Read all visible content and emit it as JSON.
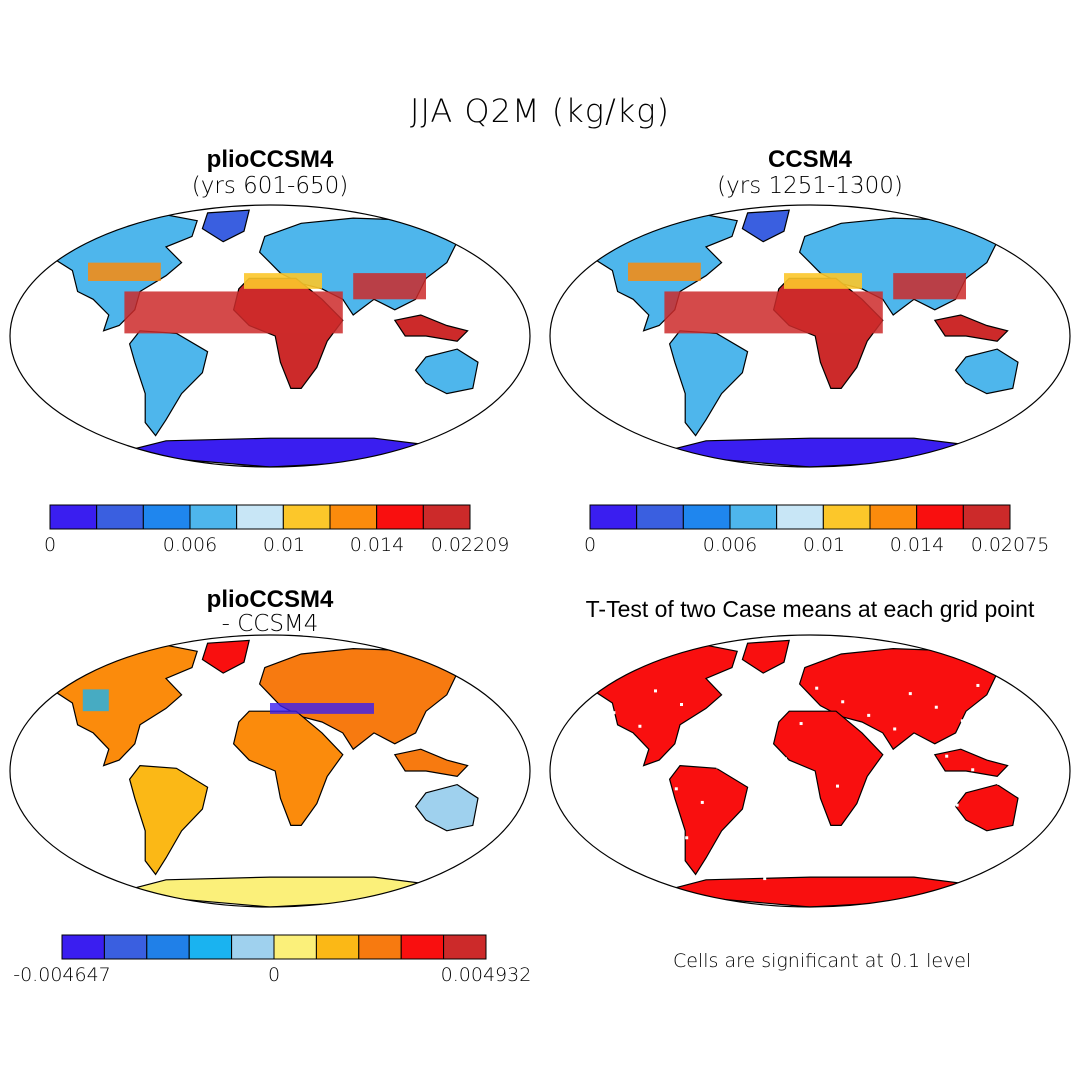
{
  "title": "JJA Q2M (kg/kg)",
  "panels": [
    {
      "title": "plioCCSM4",
      "subtitle": "(yrs 601-650)",
      "colorbar": {
        "colors": [
          "#3a1ef0",
          "#3a5fe0",
          "#1f86ee",
          "#4eb6ec",
          "#c8e6f6",
          "#fcc72a",
          "#fb8b0c",
          "#f90f0f",
          "#cc2a2a"
        ],
        "ticks": [
          "0",
          "0.006",
          "0.01",
          "0.014",
          "0.02209"
        ]
      }
    },
    {
      "title": "CCSM4",
      "subtitle": "(yrs 1251-1300)",
      "colorbar": {
        "colors": [
          "#3a1ef0",
          "#3a5fe0",
          "#1f86ee",
          "#4eb6ec",
          "#c8e6f6",
          "#fcc72a",
          "#fb8b0c",
          "#f90f0f",
          "#cc2a2a"
        ],
        "ticks": [
          "0",
          "0.006",
          "0.01",
          "0.014",
          "0.02075"
        ]
      }
    },
    {
      "title": "plioCCSM4",
      "subtitle": "- CCSM4",
      "colorbar": {
        "colors": [
          "#3a1ef0",
          "#3a5fe0",
          "#2080e8",
          "#1ab3f0",
          "#9fd1ee",
          "#fbf07a",
          "#fbb816",
          "#f77a10",
          "#f90f0f",
          "#cc2a2a"
        ],
        "ticks": [
          "-0.004647",
          "0",
          "0.004932"
        ]
      }
    },
    {
      "title": "T-Test of two Case means at each grid point",
      "note": "Cells are significant at 0.1 level"
    }
  ]
}
